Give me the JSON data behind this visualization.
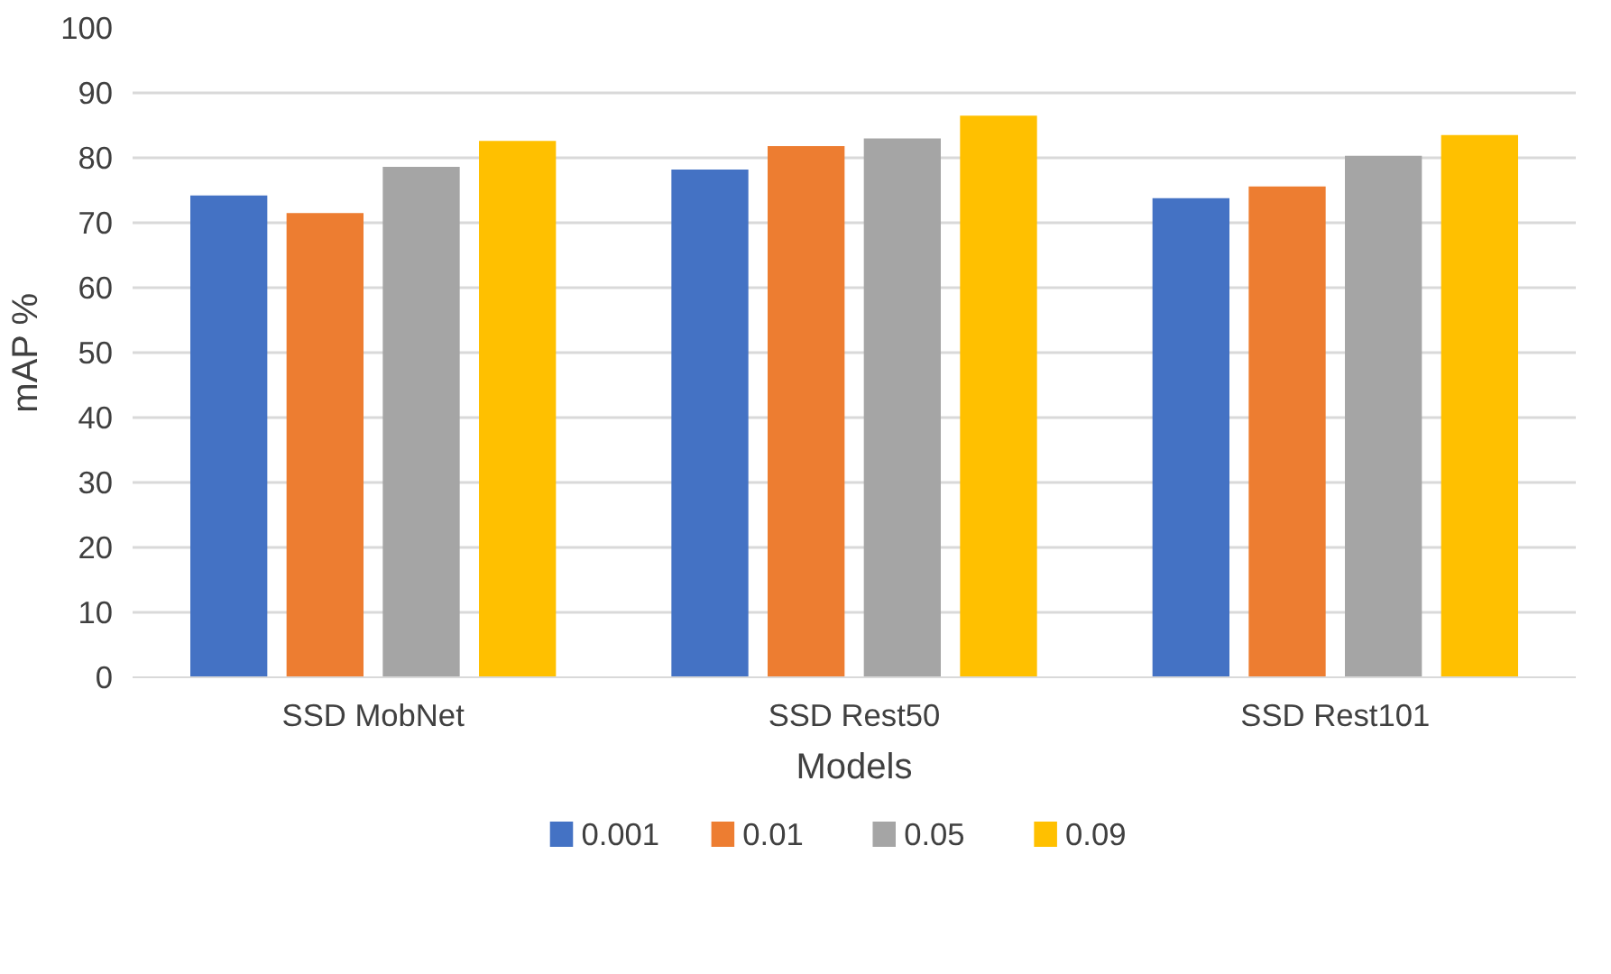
{
  "chart_data": {
    "type": "bar",
    "xlabel": "Models",
    "ylabel": "mAP %",
    "categories": [
      "SSD MobNet",
      "SSD Rest50",
      "SSD Rest101"
    ],
    "series": [
      {
        "name": "0.001",
        "color": "#4472c4",
        "values": [
          74.2,
          78.2,
          73.8
        ]
      },
      {
        "name": "0.01",
        "color": "#ed7d31",
        "values": [
          71.5,
          81.8,
          75.6
        ]
      },
      {
        "name": "0.05",
        "color": "#a5a5a5",
        "values": [
          78.6,
          83.0,
          80.3
        ]
      },
      {
        "name": "0.09",
        "color": "#ffc000",
        "values": [
          82.6,
          86.5,
          83.5
        ]
      }
    ],
    "ylim": [
      0,
      100
    ],
    "yticks": [
      0,
      10,
      20,
      30,
      40,
      50,
      60,
      70,
      80,
      90,
      100
    ],
    "grid": "y",
    "legend": "bottom"
  }
}
